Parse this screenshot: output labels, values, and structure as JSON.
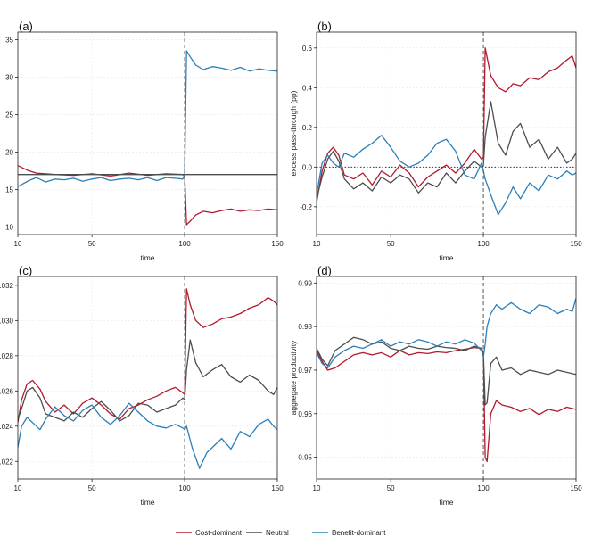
{
  "colors": {
    "cost": "#b2182b",
    "neutral": "#4d4d4d",
    "benefit": "#2c7fb8"
  },
  "legend": [
    {
      "key": "cost",
      "label": "Cost-dominant"
    },
    {
      "key": "neutral",
      "label": "Neutral"
    },
    {
      "key": "benefit",
      "label": "Benefit-dominant"
    }
  ],
  "chart_data": [
    {
      "type": "line",
      "panel": "(a)",
      "xlabel": "time",
      "ylabel": "",
      "xlim": [
        10,
        150
      ],
      "ylim": [
        9,
        36
      ],
      "xticks": [
        10,
        50,
        100,
        150
      ],
      "yticks": [
        10,
        15,
        20,
        25,
        30,
        35
      ],
      "ytick_labels": [
        "10",
        "15",
        "20",
        "25",
        "30",
        "35"
      ],
      "vline": 100,
      "series": [
        {
          "name": "Cost-dominant",
          "key": "cost",
          "x": [
            10,
            15,
            20,
            30,
            40,
            50,
            60,
            70,
            80,
            90,
            99,
            100,
            101,
            103,
            106,
            110,
            115,
            120,
            125,
            130,
            135,
            140,
            145,
            150
          ],
          "y": [
            18.2,
            17.6,
            17.2,
            17.0,
            16.9,
            17.1,
            16.8,
            17.2,
            16.9,
            17.1,
            17.0,
            16.8,
            10.3,
            10.8,
            11.6,
            12.1,
            11.9,
            12.2,
            12.4,
            12.1,
            12.3,
            12.2,
            12.4,
            12.3
          ]
        },
        {
          "name": "Neutral",
          "key": "neutral",
          "x": [
            10,
            150
          ],
          "y": [
            17.0,
            17.0
          ]
        },
        {
          "name": "Benefit-dominant",
          "key": "benefit",
          "x": [
            10,
            13,
            16,
            20,
            25,
            30,
            35,
            40,
            45,
            50,
            55,
            60,
            65,
            70,
            75,
            80,
            85,
            90,
            95,
            99,
            100,
            101,
            103,
            106,
            110,
            115,
            120,
            125,
            130,
            135,
            140,
            145,
            150
          ],
          "y": [
            15.4,
            15.8,
            16.2,
            16.6,
            16.0,
            16.4,
            16.3,
            16.5,
            16.1,
            16.4,
            16.6,
            16.2,
            16.4,
            16.5,
            16.3,
            16.6,
            16.2,
            16.6,
            16.5,
            16.4,
            17.0,
            33.5,
            32.7,
            31.6,
            31.0,
            31.4,
            31.2,
            30.9,
            31.3,
            30.8,
            31.1,
            30.9,
            30.8
          ]
        }
      ]
    },
    {
      "type": "line",
      "panel": "(b)",
      "xlabel": "time",
      "ylabel": "excess pass-through (pp)",
      "xlim": [
        10,
        150
      ],
      "ylim": [
        -0.34,
        0.68
      ],
      "xticks": [
        10,
        50,
        100,
        150
      ],
      "yticks": [
        -0.2,
        0.0,
        0.2,
        0.4,
        0.6
      ],
      "ytick_labels": [
        "-0.2",
        "0.0",
        "0.2",
        "0.4",
        "0.6"
      ],
      "vline": 100,
      "hline": 0.0,
      "series": [
        {
          "name": "Cost-dominant",
          "key": "cost",
          "x": [
            10,
            13,
            16,
            19,
            22,
            25,
            30,
            35,
            40,
            45,
            50,
            55,
            60,
            65,
            70,
            75,
            80,
            85,
            90,
            95,
            99,
            100,
            101,
            104,
            108,
            112,
            116,
            120,
            125,
            130,
            135,
            140,
            145,
            148,
            150
          ],
          "y": [
            -0.18,
            -0.02,
            0.07,
            0.1,
            0.06,
            -0.04,
            -0.06,
            -0.03,
            -0.09,
            -0.02,
            -0.05,
            0.01,
            -0.03,
            -0.1,
            -0.05,
            -0.02,
            0.01,
            -0.03,
            0.02,
            0.09,
            0.04,
            0.05,
            0.6,
            0.46,
            0.4,
            0.38,
            0.42,
            0.41,
            0.45,
            0.44,
            0.48,
            0.5,
            0.54,
            0.56,
            0.5
          ]
        },
        {
          "name": "Neutral",
          "key": "neutral",
          "x": [
            10,
            13,
            16,
            19,
            22,
            25,
            30,
            35,
            40,
            45,
            50,
            55,
            60,
            65,
            70,
            75,
            80,
            85,
            90,
            95,
            99,
            100,
            101,
            104,
            108,
            112,
            116,
            120,
            125,
            130,
            135,
            140,
            145,
            148,
            150
          ],
          "y": [
            -0.16,
            -0.05,
            0.04,
            0.08,
            0.03,
            -0.06,
            -0.11,
            -0.08,
            -0.12,
            -0.05,
            -0.08,
            -0.04,
            -0.06,
            -0.13,
            -0.08,
            -0.1,
            -0.03,
            -0.08,
            -0.02,
            0.03,
            0.0,
            0.01,
            0.15,
            0.33,
            0.12,
            0.06,
            0.18,
            0.22,
            0.1,
            0.14,
            0.04,
            0.1,
            0.02,
            0.04,
            0.07
          ]
        },
        {
          "name": "Benefit-dominant",
          "key": "benefit",
          "x": [
            10,
            13,
            16,
            19,
            22,
            25,
            30,
            35,
            40,
            45,
            50,
            55,
            60,
            65,
            70,
            75,
            80,
            85,
            90,
            95,
            99,
            100,
            101,
            104,
            108,
            112,
            116,
            120,
            125,
            130,
            135,
            140,
            145,
            148,
            150
          ],
          "y": [
            -0.14,
            0.02,
            0.06,
            0.02,
            0.0,
            0.07,
            0.05,
            0.09,
            0.12,
            0.16,
            0.1,
            0.03,
            0.0,
            0.02,
            0.06,
            0.12,
            0.14,
            0.08,
            -0.04,
            -0.06,
            0.02,
            -0.02,
            -0.06,
            -0.14,
            -0.24,
            -0.18,
            -0.1,
            -0.16,
            -0.08,
            -0.12,
            -0.04,
            -0.06,
            -0.02,
            -0.04,
            -0.03
          ]
        }
      ]
    },
    {
      "type": "line",
      "panel": "(c)",
      "xlabel": "time",
      "ylabel": "",
      "xlim": [
        10,
        150
      ],
      "ylim": [
        0.021,
        0.0325
      ],
      "xticks": [
        10,
        50,
        100,
        150
      ],
      "yticks": [
        0.022,
        0.024,
        0.026,
        0.028,
        0.03,
        0.032
      ],
      "ytick_labels": [
        ".022",
        ".024",
        ".026",
        ".028",
        ".030",
        ".032"
      ],
      "vline": 100,
      "series": [
        {
          "name": "Cost-dominant",
          "key": "cost",
          "x": [
            10,
            12,
            15,
            18,
            22,
            25,
            30,
            35,
            40,
            45,
            50,
            55,
            60,
            65,
            70,
            75,
            80,
            85,
            90,
            95,
            99,
            100,
            101,
            103,
            106,
            110,
            115,
            120,
            125,
            130,
            135,
            140,
            145,
            148,
            150
          ],
          "y": [
            0.0242,
            0.0255,
            0.0264,
            0.0266,
            0.0261,
            0.0254,
            0.0248,
            0.0252,
            0.0247,
            0.0253,
            0.0256,
            0.0252,
            0.0247,
            0.0244,
            0.025,
            0.0252,
            0.0255,
            0.0257,
            0.026,
            0.0262,
            0.0259,
            0.0258,
            0.0318,
            0.0309,
            0.03,
            0.0296,
            0.0298,
            0.0301,
            0.0302,
            0.0304,
            0.0307,
            0.0309,
            0.0313,
            0.0311,
            0.0309
          ]
        },
        {
          "name": "Neutral",
          "key": "neutral",
          "x": [
            10,
            12,
            15,
            18,
            22,
            25,
            30,
            35,
            40,
            45,
            50,
            55,
            60,
            65,
            70,
            75,
            80,
            85,
            90,
            95,
            99,
            100,
            101,
            103,
            106,
            110,
            115,
            120,
            125,
            130,
            135,
            140,
            145,
            148,
            150
          ],
          "y": [
            0.0244,
            0.025,
            0.026,
            0.0262,
            0.0256,
            0.0247,
            0.0245,
            0.0243,
            0.0248,
            0.0245,
            0.025,
            0.0254,
            0.0249,
            0.0243,
            0.0246,
            0.0253,
            0.0252,
            0.0248,
            0.025,
            0.0252,
            0.0256,
            0.0255,
            0.0272,
            0.0289,
            0.0276,
            0.0268,
            0.0272,
            0.0275,
            0.0268,
            0.0265,
            0.0269,
            0.0266,
            0.026,
            0.0258,
            0.0262
          ]
        },
        {
          "name": "Benefit-dominant",
          "key": "benefit",
          "x": [
            10,
            12,
            15,
            18,
            22,
            25,
            30,
            35,
            40,
            45,
            50,
            55,
            60,
            65,
            70,
            75,
            80,
            85,
            90,
            95,
            99,
            100,
            101,
            104,
            108,
            112,
            116,
            120,
            125,
            130,
            135,
            140,
            145,
            148,
            150
          ],
          "y": [
            0.0228,
            0.024,
            0.0245,
            0.0242,
            0.0238,
            0.0244,
            0.0251,
            0.0246,
            0.0243,
            0.0249,
            0.0252,
            0.0245,
            0.0241,
            0.0246,
            0.0253,
            0.0248,
            0.0243,
            0.024,
            0.0239,
            0.0241,
            0.0239,
            0.0238,
            0.024,
            0.0228,
            0.0216,
            0.0225,
            0.0229,
            0.0233,
            0.0227,
            0.0237,
            0.0234,
            0.0241,
            0.0244,
            0.024,
            0.0238
          ]
        }
      ]
    },
    {
      "type": "line",
      "panel": "(d)",
      "xlabel": "time",
      "ylabel": "aggregate productivity",
      "xlim": [
        10,
        150
      ],
      "ylim": [
        0.945,
        0.9915
      ],
      "xticks": [
        10,
        50,
        100,
        150
      ],
      "yticks": [
        0.95,
        0.96,
        0.97,
        0.98,
        0.99
      ],
      "ytick_labels": [
        "0.95",
        "0.96",
        "0.97",
        "0.98",
        "0.99"
      ],
      "vline": 100,
      "series": [
        {
          "name": "Cost-dominant",
          "key": "cost",
          "x": [
            10,
            13,
            16,
            20,
            25,
            30,
            35,
            40,
            45,
            50,
            55,
            60,
            65,
            70,
            75,
            80,
            85,
            90,
            95,
            99,
            100,
            101,
            102,
            104,
            107,
            110,
            115,
            120,
            125,
            130,
            135,
            140,
            145,
            150
          ],
          "y": [
            0.9745,
            0.972,
            0.97,
            0.9705,
            0.972,
            0.9735,
            0.974,
            0.9735,
            0.974,
            0.973,
            0.9745,
            0.9735,
            0.974,
            0.9738,
            0.9742,
            0.974,
            0.9745,
            0.9748,
            0.9752,
            0.975,
            0.974,
            0.95,
            0.949,
            0.96,
            0.963,
            0.962,
            0.9615,
            0.9605,
            0.9612,
            0.9598,
            0.961,
            0.9605,
            0.9615,
            0.961
          ]
        },
        {
          "name": "Neutral",
          "key": "neutral",
          "x": [
            10,
            13,
            16,
            20,
            25,
            30,
            35,
            40,
            45,
            50,
            55,
            60,
            65,
            70,
            75,
            80,
            85,
            90,
            95,
            99,
            100,
            101,
            102,
            104,
            107,
            110,
            115,
            120,
            125,
            130,
            135,
            140,
            145,
            150
          ],
          "y": [
            0.975,
            0.9725,
            0.971,
            0.9745,
            0.976,
            0.9775,
            0.977,
            0.976,
            0.9765,
            0.975,
            0.9745,
            0.9755,
            0.975,
            0.9748,
            0.9755,
            0.9752,
            0.975,
            0.9745,
            0.9755,
            0.975,
            0.974,
            0.962,
            0.9625,
            0.9715,
            0.973,
            0.97,
            0.9705,
            0.969,
            0.97,
            0.9695,
            0.969,
            0.97,
            0.9695,
            0.969
          ]
        },
        {
          "name": "Benefit-dominant",
          "key": "benefit",
          "x": [
            10,
            13,
            16,
            20,
            25,
            30,
            35,
            40,
            45,
            50,
            55,
            60,
            65,
            70,
            75,
            80,
            85,
            90,
            95,
            99,
            100,
            101,
            102,
            104,
            107,
            110,
            115,
            120,
            125,
            130,
            135,
            140,
            145,
            148,
            150
          ],
          "y": [
            0.974,
            0.9715,
            0.9705,
            0.973,
            0.9745,
            0.9755,
            0.975,
            0.976,
            0.977,
            0.9755,
            0.9765,
            0.976,
            0.977,
            0.9765,
            0.9755,
            0.9765,
            0.976,
            0.977,
            0.9762,
            0.9745,
            0.973,
            0.976,
            0.98,
            0.983,
            0.985,
            0.984,
            0.9855,
            0.984,
            0.983,
            0.985,
            0.9845,
            0.983,
            0.984,
            0.9835,
            0.9865
          ]
        }
      ]
    }
  ]
}
